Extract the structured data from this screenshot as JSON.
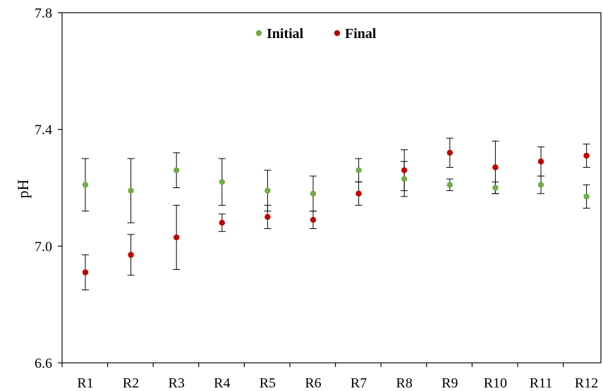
{
  "chart_data": {
    "type": "scatter",
    "title": "",
    "xlabel": "",
    "ylabel": "pH",
    "categories": [
      "R1",
      "R2",
      "R3",
      "R4",
      "R5",
      "R6",
      "R7",
      "R8",
      "R9",
      "R10",
      "R11",
      "R12"
    ],
    "ylim": [
      6.6,
      7.8
    ],
    "yticks": [
      6.6,
      7.0,
      7.4,
      7.8
    ],
    "ytick_labels": [
      "6.6",
      "7.0",
      "7.4",
      "7.8"
    ],
    "grid": false,
    "legend_position": "top-center",
    "series": [
      {
        "name": "Initial",
        "color": "#70AD47",
        "values": [
          7.21,
          7.19,
          7.26,
          7.22,
          7.19,
          7.18,
          7.26,
          7.23,
          7.21,
          7.2,
          7.21,
          7.17
        ],
        "error": [
          0.09,
          0.11,
          0.06,
          0.08,
          0.07,
          0.06,
          0.04,
          0.06,
          0.02,
          0.02,
          0.03,
          0.04
        ]
      },
      {
        "name": "Final",
        "color": "#C00000",
        "values": [
          6.91,
          6.97,
          7.03,
          7.08,
          7.1,
          7.09,
          7.18,
          7.26,
          7.32,
          7.27,
          7.29,
          7.31
        ],
        "error": [
          0.06,
          0.07,
          0.11,
          0.03,
          0.04,
          0.03,
          0.04,
          0.07,
          0.05,
          0.09,
          0.05,
          0.04
        ]
      }
    ]
  }
}
